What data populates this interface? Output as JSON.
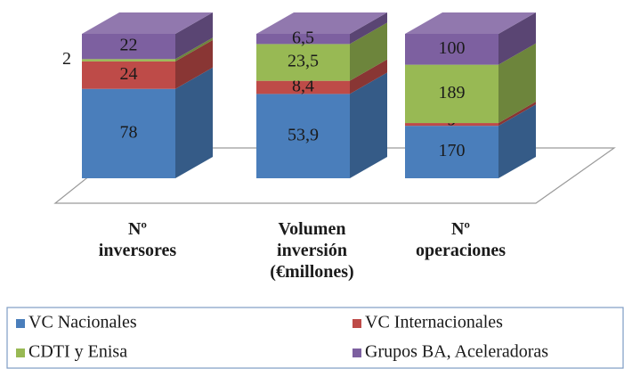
{
  "chart_data": {
    "type": "bar",
    "stacking": "percent",
    "categories": [
      [
        "Nº",
        "inversores"
      ],
      [
        "Volumen",
        "inversión",
        "(€millones)"
      ],
      [
        "Nº",
        "operaciones"
      ]
    ],
    "series": [
      {
        "name": "VC Nacionales",
        "color": "#4a7ebb",
        "values": [
          78,
          53.9,
          170
        ],
        "value_labels": [
          "78",
          "53,9",
          "170"
        ]
      },
      {
        "name": "VC Internacionales",
        "color": "#be4b48",
        "values": [
          24,
          8.4,
          9
        ],
        "value_labels": [
          "24",
          "8,4",
          "9"
        ]
      },
      {
        "name": "CDTI y Enisa",
        "color": "#98b954",
        "values": [
          2,
          23.5,
          189
        ],
        "value_labels": [
          "2",
          "23,5",
          "189"
        ]
      },
      {
        "name": "Grupos BA, Aceleradoras",
        "color": "#7d60a0",
        "values": [
          22,
          6.5,
          100
        ],
        "value_labels": [
          "22",
          "6,5",
          "100"
        ]
      }
    ],
    "legend": "bottom"
  }
}
